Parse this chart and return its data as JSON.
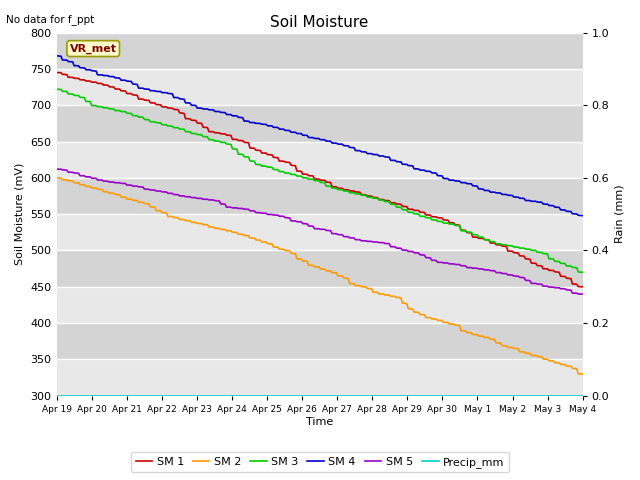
{
  "title": "Soil Moisture",
  "xlabel": "Time",
  "ylabel_left": "Soil Moisture (mV)",
  "ylabel_right": "Rain (mm)",
  "annotation": "No data for f_ppt",
  "vr_met_label": "VR_met",
  "ylim_left": [
    300,
    800
  ],
  "ylim_right": [
    0.0,
    1.0
  ],
  "yticks_left": [
    300,
    350,
    400,
    450,
    500,
    550,
    600,
    650,
    700,
    750,
    800
  ],
  "yticks_right": [
    0.0,
    0.2,
    0.4,
    0.6,
    0.8,
    1.0
  ],
  "xtick_labels": [
    "Apr 19",
    "Apr 20",
    "Apr 21",
    "Apr 22",
    "Apr 23",
    "Apr 24",
    "Apr 25",
    "Apr 26",
    "Apr 27",
    "Apr 28",
    "Apr 29",
    "Apr 30",
    "May 1",
    "May 2",
    "May 3",
    "May 4"
  ],
  "series": {
    "SM1": {
      "color": "#cc0000",
      "label": "SM 1"
    },
    "SM2": {
      "color": "#ff9900",
      "label": "SM 2"
    },
    "SM3": {
      "color": "#00cc00",
      "label": "SM 3"
    },
    "SM4": {
      "color": "#0000cc",
      "label": "SM 4"
    },
    "SM5": {
      "color": "#9900cc",
      "label": "SM 5"
    },
    "Precip": {
      "color": "#00cccc",
      "label": "Precip_mm"
    }
  },
  "band_colors": [
    "#e8e8e8",
    "#d4d4d4"
  ],
  "fig_bg": "#ffffff"
}
